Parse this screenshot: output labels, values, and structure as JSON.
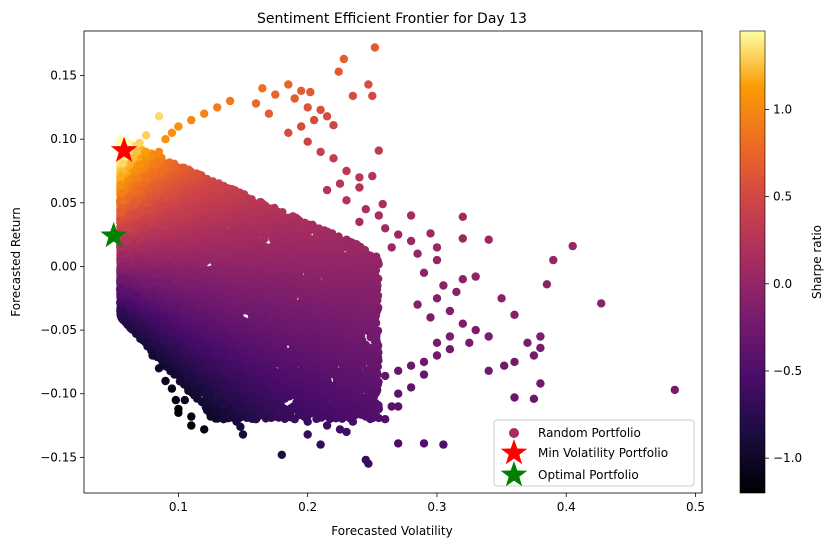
{
  "chart_data": {
    "type": "scatter",
    "title": "Sentiment Efficient Frontier for Day 13",
    "xlabel": "Forecasted Volatility",
    "ylabel": "Forecasted Return",
    "xlim": [
      0.027,
      0.505
    ],
    "ylim": [
      -0.178,
      0.185
    ],
    "x_ticks": [
      {
        "value": 0.1,
        "label": "0.1"
      },
      {
        "value": 0.2,
        "label": "0.2"
      },
      {
        "value": 0.3,
        "label": "0.3"
      },
      {
        "value": 0.4,
        "label": "0.4"
      },
      {
        "value": 0.5,
        "label": "0.5"
      }
    ],
    "y_ticks": [
      {
        "value": 0.15,
        "label": "0.15"
      },
      {
        "value": 0.1,
        "label": "0.10"
      },
      {
        "value": 0.05,
        "label": "0.05"
      },
      {
        "value": 0.0,
        "label": "0.00"
      },
      {
        "value": -0.05,
        "label": "−0.05"
      },
      {
        "value": -0.1,
        "label": "−0.10"
      },
      {
        "value": -0.15,
        "label": "−0.15"
      }
    ],
    "colorbar": {
      "label": "Sharpe ratio",
      "colormap": "inferno",
      "range": [
        -1.2,
        1.45
      ],
      "ticks": [
        {
          "value": 1.0,
          "label": "1.0"
        },
        {
          "value": 0.5,
          "label": "0.5"
        },
        {
          "value": 0.0,
          "label": "0.0"
        },
        {
          "value": -0.5,
          "label": "−0.5"
        },
        {
          "value": -1.0,
          "label": "−1.0"
        }
      ]
    },
    "series": [
      {
        "name": "Random Portfolio",
        "marker": "circle",
        "color_by": "sharpe",
        "points": [
          [
            0.252,
            0.172
          ],
          [
            0.228,
            0.163
          ],
          [
            0.224,
            0.153
          ],
          [
            0.247,
            0.143
          ],
          [
            0.21,
            0.123
          ],
          [
            0.22,
            0.111
          ],
          [
            0.25,
            0.134
          ],
          [
            0.235,
            0.134
          ],
          [
            0.202,
            0.137
          ],
          [
            0.185,
            0.143
          ],
          [
            0.195,
            0.138
          ],
          [
            0.215,
            0.118
          ],
          [
            0.255,
            0.091
          ],
          [
            0.25,
            0.071
          ],
          [
            0.24,
            0.062
          ],
          [
            0.258,
            0.049
          ],
          [
            0.28,
            0.04
          ],
          [
            0.32,
            0.039
          ],
          [
            0.295,
            0.026
          ],
          [
            0.3,
            0.015
          ],
          [
            0.32,
            0.022
          ],
          [
            0.34,
            0.021
          ],
          [
            0.39,
            0.005
          ],
          [
            0.405,
            0.016
          ],
          [
            0.427,
            -0.029
          ],
          [
            0.385,
            -0.014
          ],
          [
            0.33,
            -0.008
          ],
          [
            0.32,
            -0.01
          ],
          [
            0.35,
            -0.025
          ],
          [
            0.36,
            -0.038
          ],
          [
            0.34,
            -0.055
          ],
          [
            0.37,
            -0.06
          ],
          [
            0.38,
            -0.055
          ],
          [
            0.375,
            -0.07
          ],
          [
            0.36,
            -0.075
          ],
          [
            0.352,
            -0.078
          ],
          [
            0.34,
            -0.082
          ],
          [
            0.38,
            -0.092
          ],
          [
            0.36,
            -0.103
          ],
          [
            0.375,
            -0.104
          ],
          [
            0.484,
            -0.097
          ],
          [
            0.38,
            -0.064
          ],
          [
            0.31,
            -0.055
          ],
          [
            0.3,
            -0.06
          ],
          [
            0.29,
            -0.085
          ],
          [
            0.28,
            -0.095
          ],
          [
            0.27,
            -0.1
          ],
          [
            0.27,
            -0.11
          ],
          [
            0.26,
            -0.12
          ],
          [
            0.23,
            -0.13
          ],
          [
            0.245,
            -0.152
          ],
          [
            0.247,
            -0.155
          ],
          [
            0.27,
            -0.139
          ],
          [
            0.29,
            -0.139
          ],
          [
            0.305,
            -0.14
          ],
          [
            0.18,
            -0.148
          ],
          [
            0.21,
            -0.14
          ],
          [
            0.2,
            -0.132
          ],
          [
            0.15,
            -0.132
          ],
          [
            0.148,
            -0.126
          ],
          [
            0.12,
            -0.128
          ],
          [
            0.11,
            -0.125
          ],
          [
            0.1,
            -0.112
          ],
          [
            0.105,
            -0.105
          ],
          [
            0.098,
            -0.105
          ],
          [
            0.095,
            -0.096
          ],
          [
            0.09,
            -0.09
          ],
          [
            0.085,
            -0.08
          ],
          [
            0.08,
            -0.07
          ],
          [
            0.075,
            -0.06
          ],
          [
            0.07,
            -0.048
          ],
          [
            0.065,
            -0.04
          ],
          [
            0.062,
            -0.03
          ],
          [
            0.06,
            -0.02
          ],
          [
            0.058,
            -0.01
          ],
          [
            0.058,
            0.0
          ],
          [
            0.059,
            0.01
          ],
          [
            0.06,
            0.02
          ],
          [
            0.061,
            0.03
          ],
          [
            0.063,
            0.04
          ],
          [
            0.066,
            0.05
          ],
          [
            0.07,
            0.06
          ],
          [
            0.075,
            0.07
          ],
          [
            0.08,
            0.08
          ],
          [
            0.085,
            0.09
          ],
          [
            0.09,
            0.1
          ],
          [
            0.095,
            0.105
          ],
          [
            0.1,
            0.11
          ],
          [
            0.11,
            0.115
          ],
          [
            0.12,
            0.12
          ],
          [
            0.13,
            0.125
          ],
          [
            0.14,
            0.13
          ],
          [
            0.085,
            0.118
          ],
          [
            0.075,
            0.103
          ],
          [
            0.07,
            0.097
          ],
          [
            0.068,
            0.09
          ],
          [
            0.065,
            0.085
          ],
          [
            0.1,
            -0.115
          ],
          [
            0.11,
            -0.118
          ],
          [
            0.125,
            -0.118
          ],
          [
            0.135,
            -0.12
          ],
          [
            0.145,
            -0.122
          ],
          [
            0.16,
            -0.12
          ],
          [
            0.175,
            -0.118
          ],
          [
            0.19,
            -0.12
          ],
          [
            0.2,
            -0.122
          ],
          [
            0.215,
            -0.125
          ],
          [
            0.225,
            -0.128
          ],
          [
            0.235,
            -0.122
          ],
          [
            0.245,
            -0.115
          ],
          [
            0.255,
            -0.112
          ],
          [
            0.265,
            -0.11
          ],
          [
            0.165,
            0.14
          ],
          [
            0.175,
            0.135
          ],
          [
            0.17,
            0.12
          ],
          [
            0.16,
            0.128
          ],
          [
            0.19,
            0.132
          ],
          [
            0.2,
            0.125
          ],
          [
            0.205,
            0.115
          ],
          [
            0.195,
            0.11
          ],
          [
            0.185,
            0.105
          ],
          [
            0.2,
            0.098
          ],
          [
            0.21,
            0.09
          ],
          [
            0.22,
            0.085
          ],
          [
            0.23,
            0.075
          ],
          [
            0.24,
            0.07
          ],
          [
            0.225,
            0.065
          ],
          [
            0.215,
            0.06
          ],
          [
            0.23,
            0.052
          ],
          [
            0.245,
            0.045
          ],
          [
            0.255,
            0.04
          ],
          [
            0.24,
            0.035
          ],
          [
            0.26,
            0.03
          ],
          [
            0.27,
            0.025
          ],
          [
            0.28,
            0.02
          ],
          [
            0.265,
            0.015
          ],
          [
            0.285,
            0.01
          ],
          [
            0.3,
            0.005
          ],
          [
            0.29,
            -0.005
          ],
          [
            0.305,
            -0.015
          ],
          [
            0.315,
            -0.02
          ],
          [
            0.3,
            -0.025
          ],
          [
            0.285,
            -0.03
          ],
          [
            0.31,
            -0.035
          ],
          [
            0.295,
            -0.04
          ],
          [
            0.32,
            -0.045
          ],
          [
            0.33,
            -0.05
          ],
          [
            0.325,
            -0.06
          ],
          [
            0.31,
            -0.065
          ],
          [
            0.3,
            -0.07
          ],
          [
            0.29,
            -0.075
          ],
          [
            0.28,
            -0.078
          ],
          [
            0.27,
            -0.082
          ],
          [
            0.26,
            -0.086
          ],
          [
            0.25,
            -0.09
          ],
          [
            0.24,
            -0.095
          ],
          [
            0.23,
            -0.1
          ],
          [
            0.22,
            -0.105
          ],
          [
            0.21,
            -0.108
          ],
          [
            0.2,
            -0.11
          ],
          [
            0.19,
            -0.112
          ],
          [
            0.18,
            -0.112
          ],
          [
            0.17,
            -0.11
          ]
        ]
      },
      {
        "name": "Min Volatility Portfolio",
        "marker": "star",
        "color": "#ff0000",
        "points": [
          [
            0.058,
            0.091
          ]
        ]
      },
      {
        "name": "Optimal Portfolio",
        "marker": "star",
        "color": "#008000",
        "points": [
          [
            0.05,
            0.024
          ]
        ]
      }
    ],
    "legend": {
      "placement": "lower-right",
      "entries": [
        "Random Portfolio",
        "Min Volatility Portfolio",
        "Optimal Portfolio"
      ]
    },
    "grid": false
  }
}
